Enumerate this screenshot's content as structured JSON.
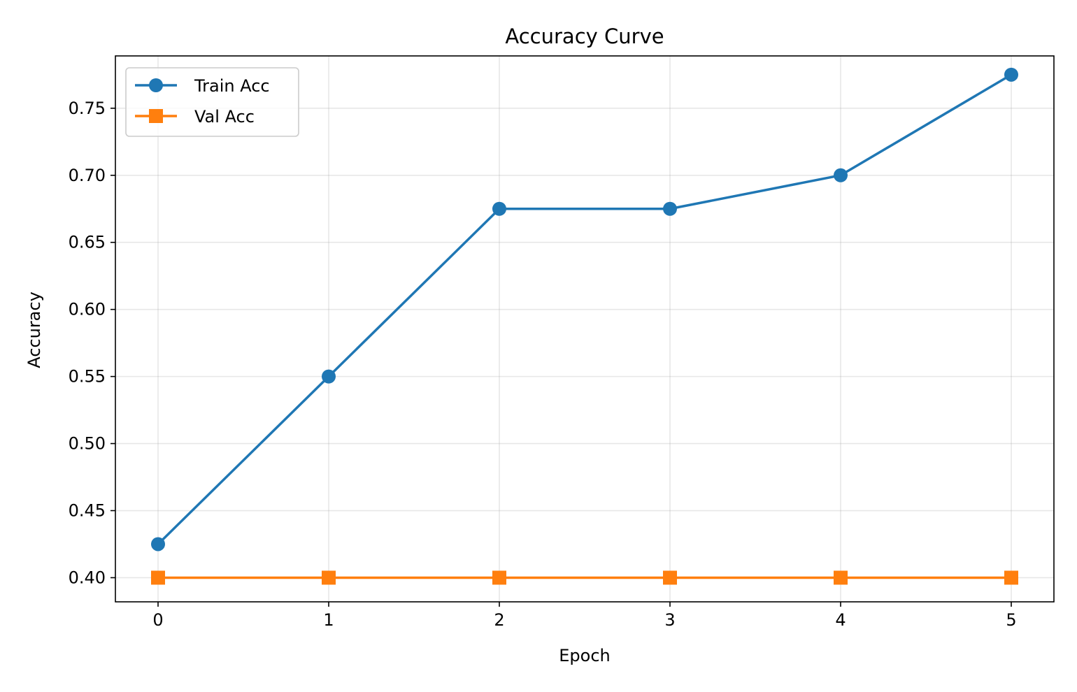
{
  "chart_data": {
    "type": "line",
    "title": "Accuracy Curve",
    "xlabel": "Epoch",
    "ylabel": "Accuracy",
    "x": [
      0,
      1,
      2,
      3,
      4,
      5
    ],
    "xticks": [
      "0",
      "1",
      "2",
      "3",
      "4",
      "5"
    ],
    "yticks": [
      "0.40",
      "0.45",
      "0.50",
      "0.55",
      "0.60",
      "0.65",
      "0.70",
      "0.75"
    ],
    "xlim": [
      -0.25,
      5.25
    ],
    "ylim": [
      0.382,
      0.789
    ],
    "grid": true,
    "legend_position": "top-left",
    "series": [
      {
        "name": "Train Acc",
        "values": [
          0.425,
          0.55,
          0.675,
          0.675,
          0.7,
          0.775
        ],
        "color": "#1f77b4",
        "marker": "circle"
      },
      {
        "name": "Val Acc",
        "values": [
          0.4,
          0.4,
          0.4,
          0.4,
          0.4,
          0.4
        ],
        "color": "#ff7f0e",
        "marker": "square"
      }
    ]
  }
}
